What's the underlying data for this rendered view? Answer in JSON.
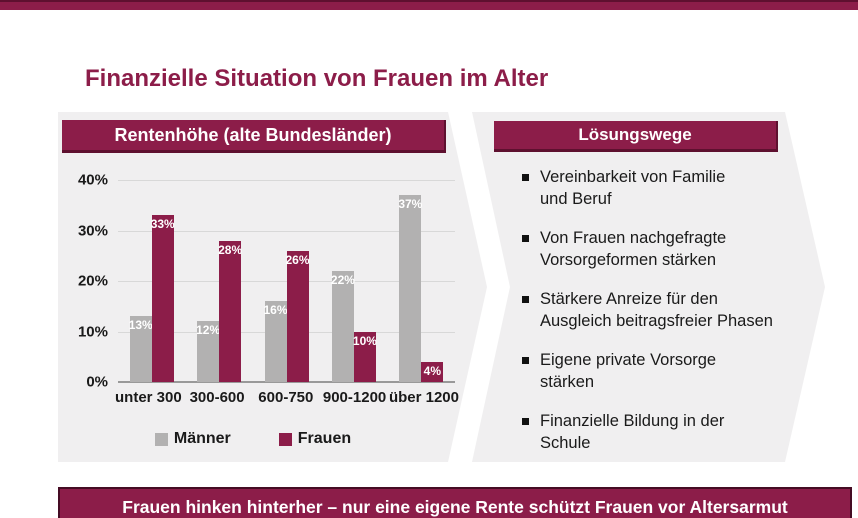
{
  "slide": {
    "title": "Finanzielle Situation von Frauen im Alter",
    "bottom_banner": "Frauen hinken hinterher – nur eine eigene Rente schützt Frauen vor Altersarmut"
  },
  "colors": {
    "maroon": "#8C1D49",
    "maroon_dark": "#5E102F",
    "banner_border": "#450C24",
    "panel_gray": "#F0EFF0",
    "gridline": "#D8D8D8",
    "bar_gray": "#B2B1B1",
    "bar_maroon": "#8C1D49"
  },
  "chart_data": {
    "type": "bar",
    "title": "Rentenhöhe (alte Bundesländer)",
    "categories": [
      "unter 300",
      "300-600",
      "600-750",
      "900-1200",
      "über 1200"
    ],
    "series": [
      {
        "name": "Männer",
        "color": "#B2B1B1",
        "values": [
          13,
          12,
          16,
          22,
          37
        ]
      },
      {
        "name": "Frauen",
        "color": "#8C1D49",
        "values": [
          33,
          28,
          26,
          10,
          4
        ]
      }
    ],
    "value_labels": true,
    "value_label_suffix": "%",
    "xlabel": "",
    "ylabel": "",
    "ylim": [
      0,
      40
    ],
    "yticks": [
      "40%",
      "30%",
      "20%",
      "10%",
      "0%"
    ],
    "grid": true,
    "legend_position": "bottom"
  },
  "solutions": {
    "header": "Lösungswege",
    "items": [
      "Vereinbarkeit von Familie\nund Beruf",
      "Von Frauen nachgefragte\nVorsorgeformen stärken",
      "Stärkere Anreize für den\nAusgleich beitragsfreier Phasen",
      "Eigene private Vorsorge\nstärken",
      "Finanzielle Bildung in der\nSchule"
    ]
  }
}
